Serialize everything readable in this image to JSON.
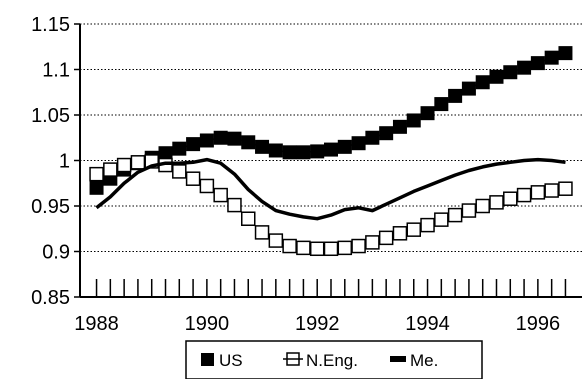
{
  "chart_data": {
    "type": "line",
    "title": "",
    "xlabel": "",
    "ylabel": "",
    "xlim": [
      1987.7,
      1996.8
    ],
    "ylim": [
      0.85,
      1.15
    ],
    "grid": "horizontal dotted",
    "legend_placement": "bottom",
    "y_ticks": [
      "1.15",
      "1.1",
      "1.05",
      "1",
      "0.95",
      "0.9",
      "0.85"
    ],
    "y_tick_values": [
      1.15,
      1.1,
      1.05,
      1.0,
      0.95,
      0.9,
      0.85
    ],
    "x_ticks": [
      "1988",
      "1990",
      "1992",
      "1994",
      "1996"
    ],
    "x_tick_values": [
      1988,
      1990,
      1992,
      1994,
      1996
    ],
    "series": [
      {
        "name": "US",
        "marker": "filled-square",
        "color": "#000000",
        "x": [
          1988.0,
          1988.25,
          1988.5,
          1988.75,
          1989.0,
          1989.25,
          1989.5,
          1989.75,
          1990.0,
          1990.25,
          1990.5,
          1990.75,
          1991.0,
          1991.25,
          1991.5,
          1991.75,
          1992.0,
          1992.25,
          1992.5,
          1992.75,
          1993.0,
          1993.25,
          1993.5,
          1993.75,
          1994.0,
          1994.25,
          1994.5,
          1994.75,
          1995.0,
          1995.25,
          1995.5,
          1995.75,
          1996.0,
          1996.25,
          1996.5
        ],
        "values": [
          0.97,
          0.98,
          0.99,
          0.997,
          1.003,
          1.008,
          1.013,
          1.018,
          1.022,
          1.025,
          1.024,
          1.02,
          1.015,
          1.011,
          1.009,
          1.009,
          1.01,
          1.012,
          1.015,
          1.019,
          1.025,
          1.03,
          1.037,
          1.044,
          1.052,
          1.062,
          1.071,
          1.079,
          1.086,
          1.092,
          1.097,
          1.102,
          1.107,
          1.113,
          1.118
        ]
      },
      {
        "name": "N.Eng.",
        "marker": "open-square",
        "color": "#000000",
        "x": [
          1988.0,
          1988.25,
          1988.5,
          1988.75,
          1989.0,
          1989.25,
          1989.5,
          1989.75,
          1990.0,
          1990.25,
          1990.5,
          1990.75,
          1991.0,
          1991.25,
          1991.5,
          1991.75,
          1992.0,
          1992.25,
          1992.5,
          1992.75,
          1993.0,
          1993.25,
          1993.5,
          1993.75,
          1994.0,
          1994.25,
          1994.5,
          1994.75,
          1995.0,
          1995.25,
          1995.5,
          1995.75,
          1996.0,
          1996.25,
          1996.5
        ],
        "values": [
          0.985,
          0.99,
          0.995,
          0.998,
          0.999,
          0.995,
          0.988,
          0.98,
          0.972,
          0.962,
          0.951,
          0.936,
          0.921,
          0.912,
          0.906,
          0.904,
          0.903,
          0.903,
          0.904,
          0.906,
          0.91,
          0.915,
          0.92,
          0.924,
          0.929,
          0.935,
          0.94,
          0.945,
          0.95,
          0.954,
          0.958,
          0.962,
          0.965,
          0.967,
          0.969
        ]
      },
      {
        "name": "Me.",
        "marker": "dash",
        "color": "#000000",
        "x": [
          1988.0,
          1988.25,
          1988.5,
          1988.75,
          1989.0,
          1989.25,
          1989.5,
          1989.75,
          1990.0,
          1990.25,
          1990.5,
          1990.75,
          1991.0,
          1991.25,
          1991.5,
          1991.75,
          1992.0,
          1992.25,
          1992.5,
          1992.75,
          1993.0,
          1993.25,
          1993.5,
          1993.75,
          1994.0,
          1994.25,
          1994.5,
          1994.75,
          1995.0,
          1995.25,
          1995.5,
          1995.75,
          1996.0,
          1996.25,
          1996.5
        ],
        "values": [
          0.948,
          0.96,
          0.975,
          0.987,
          0.994,
          0.997,
          0.997,
          0.998,
          1.001,
          0.997,
          0.985,
          0.968,
          0.955,
          0.945,
          0.941,
          0.938,
          0.936,
          0.94,
          0.946,
          0.948,
          0.945,
          0.952,
          0.959,
          0.966,
          0.972,
          0.978,
          0.984,
          0.989,
          0.993,
          0.996,
          0.998,
          1.0,
          1.001,
          1.0,
          0.998
        ]
      }
    ]
  }
}
